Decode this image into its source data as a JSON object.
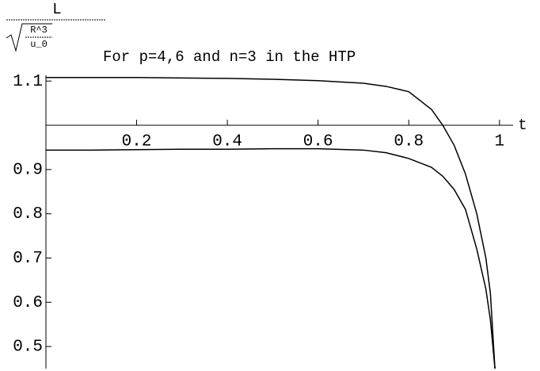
{
  "chart_data": {
    "type": "line",
    "title": "For p=4,6 and n=3 in the HTP",
    "x_label": "t",
    "y_label": {
      "numerator": "L",
      "radicand_top": "R^3",
      "radicand_bottom": "u_0"
    },
    "x": [
      0,
      0.1,
      0.2,
      0.3,
      0.4,
      0.5,
      0.6,
      0.7,
      0.75,
      0.8,
      0.85,
      0.875,
      0.9,
      0.925,
      0.95,
      0.97,
      0.98,
      0.99
    ],
    "series": [
      {
        "color": "#000000",
        "values": [
          1.108,
          1.108,
          1.108,
          1.107,
          1.106,
          1.104,
          1.101,
          1.095,
          1.088,
          1.076,
          1.036,
          1.0,
          0.955,
          0.89,
          0.8,
          0.7,
          0.62,
          0.45
        ]
      },
      {
        "color": "#000000",
        "values": [
          0.944,
          0.944,
          0.945,
          0.946,
          0.946,
          0.947,
          0.947,
          0.944,
          0.938,
          0.925,
          0.905,
          0.885,
          0.855,
          0.81,
          0.72,
          0.63,
          0.56,
          0.45
        ]
      }
    ],
    "xlim": [
      0,
      1.03
    ],
    "ylim": [
      0.45,
      1.113
    ],
    "xticks": [
      0.2,
      0.4,
      0.6,
      0.8,
      1
    ],
    "yticks": [
      0.5,
      0.6,
      0.7,
      0.8,
      0.9,
      1.1
    ],
    "axis_origin": [
      0,
      1
    ]
  }
}
